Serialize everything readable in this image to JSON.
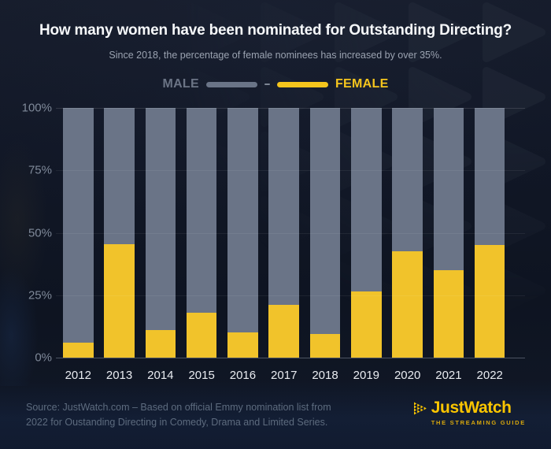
{
  "header": {
    "title": "How many women have been nominated for Outstanding Directing?",
    "subtitle": "Since 2018, the percentage of female nominees has increased by over 35%."
  },
  "legend": {
    "male_label": "MALE",
    "female_label": "FEMALE"
  },
  "chart_data": {
    "type": "bar",
    "stacked": true,
    "title": "How many women have been nominated for Outstanding Directing?",
    "categories": [
      "2012",
      "2013",
      "2014",
      "2015",
      "2016",
      "2017",
      "2018",
      "2019",
      "2020",
      "2021",
      "2022"
    ],
    "series": [
      {
        "name": "MALE",
        "color": "#6A7487",
        "values": [
          94,
          54.5,
          89,
          82,
          90,
          79,
          90.5,
          73.5,
          57.5,
          65,
          55
        ]
      },
      {
        "name": "FEMALE",
        "color": "#F1C32B",
        "values": [
          6,
          45.5,
          11,
          18,
          10,
          21,
          9.5,
          26.5,
          42.5,
          35,
          45
        ]
      }
    ],
    "xlabel": "",
    "ylabel": "",
    "ylim": [
      0,
      100
    ],
    "yaxis": {
      "ticks": [
        {
          "label": "100%",
          "value": 100
        },
        {
          "label": "75%",
          "value": 75
        },
        {
          "label": "50%",
          "value": 50
        },
        {
          "label": "25%",
          "value": 25
        },
        {
          "label": "0%",
          "value": 0
        }
      ]
    },
    "grid": true,
    "legend_position": "top"
  },
  "footer": {
    "source_line1": "Source: JustWatch.com – Based on official Emmy nomination list from",
    "source_line2": "2022 for Oustanding Directing in Comedy, Drama and Limited Series.",
    "logo": {
      "name": "JustWatch",
      "tagline": "THE STREAMING GUIDE"
    }
  },
  "colors": {
    "male": "#6A7487",
    "female": "#F1C32B",
    "brand_yellow": "#FBC500",
    "brand_tagline_yellow": "#D7A70D",
    "background": "#111726"
  }
}
